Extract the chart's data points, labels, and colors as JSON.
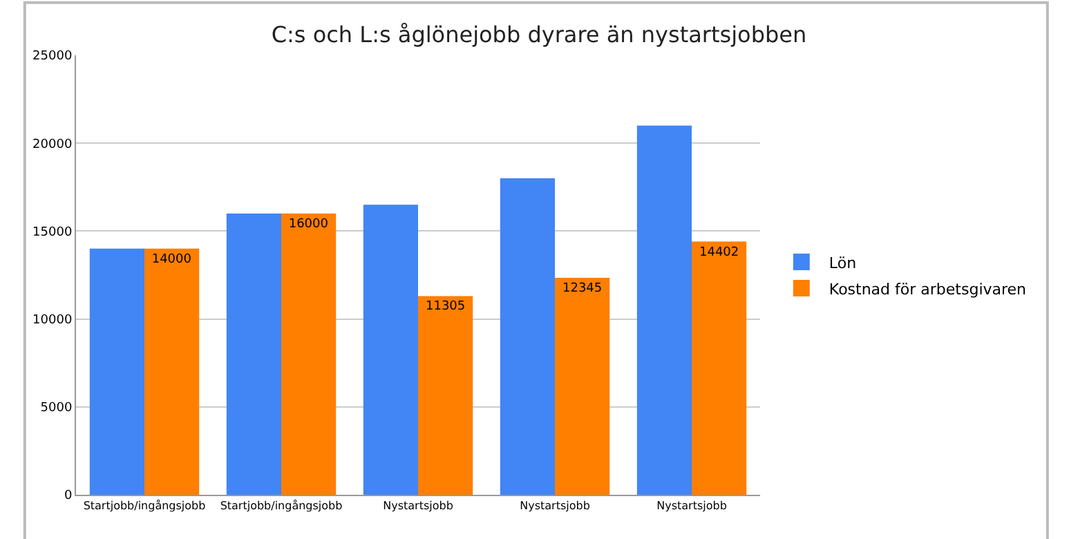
{
  "chart_data": {
    "type": "bar",
    "title": "C:s och L:s åglönejobb dyrare än nystartsjobben",
    "categories": [
      "Startjobb/ingångsjobb",
      "Startjobb/ingångsjobb",
      "Nystartsjobb",
      "Nystartsjobb",
      "Nystartsjobb"
    ],
    "series": [
      {
        "name": "Lön",
        "color": "#4285f4",
        "values": [
          14000,
          16000,
          16500,
          18000,
          21000
        ]
      },
      {
        "name": "Kostnad för arbetsgivaren",
        "color": "#ff7f00",
        "values": [
          14000,
          16000,
          11305,
          12345,
          14402
        ],
        "value_labels": [
          "14000",
          "16000",
          "11305",
          "12345",
          "14402"
        ]
      }
    ],
    "ylim": [
      0,
      25000
    ],
    "yticks": [
      0,
      5000,
      10000,
      15000,
      20000,
      25000
    ],
    "grid": "y",
    "legend": "right"
  }
}
